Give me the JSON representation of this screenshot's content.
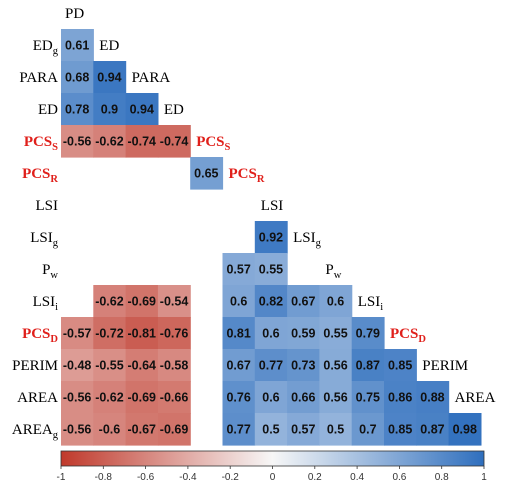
{
  "chart_data": {
    "type": "heatmap",
    "colorbar": {
      "range": [
        -1,
        1
      ],
      "ticks": [
        "-1",
        "-0.8",
        "-0.6",
        "-0.4",
        "-0.2",
        "0",
        "0.2",
        "0.4",
        "0.6",
        "0.8",
        "1"
      ],
      "negative_color": "#c0392b",
      "neutral_color": "#f7f7f7",
      "positive_color": "#2f6fbe"
    },
    "highlight_color": "#e0201b",
    "label_color": "#000000",
    "rows": [
      {
        "label": "ED",
        "sub": "g",
        "red": false
      },
      {
        "label": "PARA",
        "sub": "",
        "red": false
      },
      {
        "label": "ED",
        "sub": "",
        "red": false
      },
      {
        "label": "PCS",
        "sub": "S",
        "red": true
      },
      {
        "label": "PCS",
        "sub": "R",
        "red": true
      },
      {
        "label": "LSI",
        "sub": "",
        "red": false
      },
      {
        "label": "LSI",
        "sub": "g",
        "red": false
      },
      {
        "label": "P",
        "sub": "w",
        "red": false
      },
      {
        "label": "LSI",
        "sub": "i",
        "red": false
      },
      {
        "label": "PCS",
        "sub": "D",
        "red": true
      },
      {
        "label": "PERIM",
        "sub": "",
        "red": false
      },
      {
        "label": "AREA",
        "sub": "",
        "red": false
      },
      {
        "label": "AREA",
        "sub": "g",
        "red": false
      }
    ],
    "diagonal_labels": [
      {
        "label": "PD",
        "sub": "",
        "red": false
      },
      {
        "label": "ED",
        "sub": "",
        "red": false
      },
      {
        "label": "PARA",
        "sub": "",
        "red": false
      },
      {
        "label": "ED",
        "sub": "",
        "red": false
      },
      {
        "label": "PCS",
        "sub": "S",
        "red": true
      },
      {
        "label": "PCS",
        "sub": "R",
        "red": true
      },
      {
        "label": "LSI",
        "sub": "",
        "red": false
      },
      {
        "label": "LSI",
        "sub": "g",
        "red": false
      },
      {
        "label": "P",
        "sub": "w",
        "red": false
      },
      {
        "label": "LSI",
        "sub": "i",
        "red": false
      },
      {
        "label": "PCS",
        "sub": "D",
        "red": true
      },
      {
        "label": "PERIM",
        "sub": "",
        "red": false
      },
      {
        "label": "AREA",
        "sub": "",
        "red": false
      }
    ],
    "cells": [
      {
        "row": 0,
        "col": 0,
        "value": 0.61,
        "label": "0.61"
      },
      {
        "row": 1,
        "col": 0,
        "value": 0.68,
        "label": "0.68"
      },
      {
        "row": 1,
        "col": 1,
        "value": 0.94,
        "label": "0.94"
      },
      {
        "row": 2,
        "col": 0,
        "value": 0.78,
        "label": "0.78"
      },
      {
        "row": 2,
        "col": 1,
        "value": 0.9,
        "label": "0.9"
      },
      {
        "row": 2,
        "col": 2,
        "value": 0.94,
        "label": "0.94"
      },
      {
        "row": 3,
        "col": 0,
        "value": -0.56,
        "label": "-0.56"
      },
      {
        "row": 3,
        "col": 1,
        "value": -0.62,
        "label": "-0.62"
      },
      {
        "row": 3,
        "col": 2,
        "value": -0.74,
        "label": "-0.74"
      },
      {
        "row": 3,
        "col": 3,
        "value": -0.74,
        "label": "-0.74"
      },
      {
        "row": 4,
        "col": 4,
        "value": 0.65,
        "label": "0.65"
      },
      {
        "row": 6,
        "col": 6,
        "value": 0.92,
        "label": "0.92"
      },
      {
        "row": 7,
        "col": 5,
        "value": 0.57,
        "label": "0.57"
      },
      {
        "row": 7,
        "col": 6,
        "value": 0.55,
        "label": "0.55"
      },
      {
        "row": 8,
        "col": 1,
        "value": -0.62,
        "label": "-0.62"
      },
      {
        "row": 8,
        "col": 2,
        "value": -0.69,
        "label": "-0.69"
      },
      {
        "row": 8,
        "col": 3,
        "value": -0.54,
        "label": "-0.54"
      },
      {
        "row": 8,
        "col": 5,
        "value": 0.6,
        "label": "0.6"
      },
      {
        "row": 8,
        "col": 6,
        "value": 0.82,
        "label": "0.82"
      },
      {
        "row": 8,
        "col": 7,
        "value": 0.67,
        "label": "0.67"
      },
      {
        "row": 8,
        "col": 8,
        "value": 0.6,
        "label": "0.6"
      },
      {
        "row": 9,
        "col": 0,
        "value": -0.57,
        "label": "-0.57"
      },
      {
        "row": 9,
        "col": 1,
        "value": -0.72,
        "label": "-0.72"
      },
      {
        "row": 9,
        "col": 2,
        "value": -0.81,
        "label": "-0.81"
      },
      {
        "row": 9,
        "col": 3,
        "value": -0.76,
        "label": "-0.76"
      },
      {
        "row": 9,
        "col": 5,
        "value": 0.81,
        "label": "0.81"
      },
      {
        "row": 9,
        "col": 6,
        "value": 0.6,
        "label": "0.6"
      },
      {
        "row": 9,
        "col": 7,
        "value": 0.59,
        "label": "0.59"
      },
      {
        "row": 9,
        "col": 8,
        "value": 0.55,
        "label": "0.55"
      },
      {
        "row": 9,
        "col": 9,
        "value": 0.79,
        "label": "0.79"
      },
      {
        "row": 10,
        "col": 0,
        "value": -0.48,
        "label": "-0.48"
      },
      {
        "row": 10,
        "col": 1,
        "value": -0.55,
        "label": "-0.55"
      },
      {
        "row": 10,
        "col": 2,
        "value": -0.64,
        "label": "-0.64"
      },
      {
        "row": 10,
        "col": 3,
        "value": -0.58,
        "label": "-0.58"
      },
      {
        "row": 10,
        "col": 5,
        "value": 0.67,
        "label": "0.67"
      },
      {
        "row": 10,
        "col": 6,
        "value": 0.77,
        "label": "0.77"
      },
      {
        "row": 10,
        "col": 7,
        "value": 0.73,
        "label": "0.73"
      },
      {
        "row": 10,
        "col": 8,
        "value": 0.56,
        "label": "0.56"
      },
      {
        "row": 10,
        "col": 9,
        "value": 0.87,
        "label": "0.87"
      },
      {
        "row": 10,
        "col": 10,
        "value": 0.85,
        "label": "0.85"
      },
      {
        "row": 11,
        "col": 0,
        "value": -0.56,
        "label": "-0.56"
      },
      {
        "row": 11,
        "col": 1,
        "value": -0.62,
        "label": "-0.62"
      },
      {
        "row": 11,
        "col": 2,
        "value": -0.69,
        "label": "-0.69"
      },
      {
        "row": 11,
        "col": 3,
        "value": -0.66,
        "label": "-0.66"
      },
      {
        "row": 11,
        "col": 5,
        "value": 0.76,
        "label": "0.76"
      },
      {
        "row": 11,
        "col": 6,
        "value": 0.6,
        "label": "0.6"
      },
      {
        "row": 11,
        "col": 7,
        "value": 0.66,
        "label": "0.66"
      },
      {
        "row": 11,
        "col": 8,
        "value": 0.56,
        "label": "0.56"
      },
      {
        "row": 11,
        "col": 9,
        "value": 0.75,
        "label": "0.75"
      },
      {
        "row": 11,
        "col": 10,
        "value": 0.86,
        "label": "0.86"
      },
      {
        "row": 11,
        "col": 11,
        "value": 0.88,
        "label": "0.88"
      },
      {
        "row": 12,
        "col": 0,
        "value": -0.56,
        "label": "-0.56"
      },
      {
        "row": 12,
        "col": 1,
        "value": -0.6,
        "label": "-0.6"
      },
      {
        "row": 12,
        "col": 2,
        "value": -0.67,
        "label": "-0.67"
      },
      {
        "row": 12,
        "col": 3,
        "value": -0.69,
        "label": "-0.69"
      },
      {
        "row": 12,
        "col": 5,
        "value": 0.77,
        "label": "0.77"
      },
      {
        "row": 12,
        "col": 6,
        "value": 0.5,
        "label": "0.5"
      },
      {
        "row": 12,
        "col": 7,
        "value": 0.57,
        "label": "0.57"
      },
      {
        "row": 12,
        "col": 8,
        "value": 0.5,
        "label": "0.5"
      },
      {
        "row": 12,
        "col": 9,
        "value": 0.7,
        "label": "0.7"
      },
      {
        "row": 12,
        "col": 10,
        "value": 0.85,
        "label": "0.85"
      },
      {
        "row": 12,
        "col": 11,
        "value": 0.87,
        "label": "0.87"
      },
      {
        "row": 12,
        "col": 12,
        "value": 0.98,
        "label": "0.98"
      }
    ]
  }
}
